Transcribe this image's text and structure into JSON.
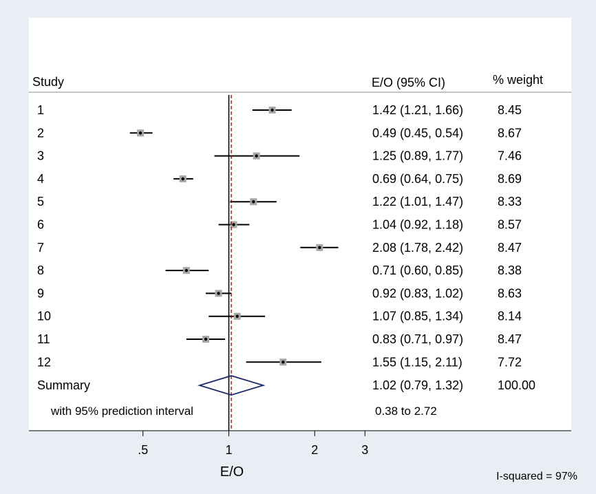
{
  "chart_data": {
    "type": "forest",
    "headers": {
      "study": "Study",
      "estimate": "E/O (95% CI)",
      "weight": "% weight"
    },
    "studies": [
      {
        "label": "1",
        "est": 1.42,
        "lo": 1.21,
        "hi": 1.66,
        "ci_text": "1.42 (1.21, 1.66)",
        "weight_text": "8.45"
      },
      {
        "label": "2",
        "est": 0.49,
        "lo": 0.45,
        "hi": 0.54,
        "ci_text": "0.49 (0.45, 0.54)",
        "weight_text": "8.67"
      },
      {
        "label": "3",
        "est": 1.25,
        "lo": 0.89,
        "hi": 1.77,
        "ci_text": "1.25 (0.89, 1.77)",
        "weight_text": "7.46"
      },
      {
        "label": "4",
        "est": 0.69,
        "lo": 0.64,
        "hi": 0.75,
        "ci_text": "0.69 (0.64, 0.75)",
        "weight_text": "8.69"
      },
      {
        "label": "5",
        "est": 1.22,
        "lo": 1.01,
        "hi": 1.47,
        "ci_text": "1.22 (1.01, 1.47)",
        "weight_text": "8.33"
      },
      {
        "label": "6",
        "est": 1.04,
        "lo": 0.92,
        "hi": 1.18,
        "ci_text": "1.04 (0.92, 1.18)",
        "weight_text": "8.57"
      },
      {
        "label": "7",
        "est": 2.08,
        "lo": 1.78,
        "hi": 2.42,
        "ci_text": "2.08 (1.78, 2.42)",
        "weight_text": "8.47"
      },
      {
        "label": "8",
        "est": 0.71,
        "lo": 0.6,
        "hi": 0.85,
        "ci_text": "0.71 (0.60, 0.85)",
        "weight_text": "8.38"
      },
      {
        "label": "9",
        "est": 0.92,
        "lo": 0.83,
        "hi": 1.02,
        "ci_text": "0.92 (0.83, 1.02)",
        "weight_text": "8.63"
      },
      {
        "label": "10",
        "est": 1.07,
        "lo": 0.85,
        "hi": 1.34,
        "ci_text": "1.07 (0.85, 1.34)",
        "weight_text": "8.14"
      },
      {
        "label": "11",
        "est": 0.83,
        "lo": 0.71,
        "hi": 0.97,
        "ci_text": "0.83 (0.71, 0.97)",
        "weight_text": "8.47"
      },
      {
        "label": "12",
        "est": 1.55,
        "lo": 1.15,
        "hi": 2.11,
        "ci_text": "1.55 (1.15, 2.11)",
        "weight_text": "7.72"
      }
    ],
    "summary": {
      "label": "Summary",
      "est": 1.02,
      "lo": 0.79,
      "hi": 1.32,
      "ci_text": "1.02 (0.79, 1.32)",
      "weight_text": "100.00"
    },
    "prediction_interval": {
      "label": "with 95% prediction interval",
      "text": "0.38 to 2.72"
    },
    "null_line": 1,
    "x_scale": "log",
    "x_ticks": [
      {
        "value": 0.5,
        "label": ".5"
      },
      {
        "value": 1,
        "label": "1"
      },
      {
        "value": 2,
        "label": "2"
      },
      {
        "value": 3,
        "label": "3"
      }
    ],
    "xlabel": "E/O",
    "note": "I-squared = 97%",
    "colors": {
      "background": "#e8eef3",
      "plot_region": "#ffffff",
      "ci_line": "#000000",
      "point_box": "#a6a6a6",
      "point_dot": "#000000",
      "summary_diamond": "#1a2a6c",
      "summary_line": "#8b0000"
    }
  }
}
